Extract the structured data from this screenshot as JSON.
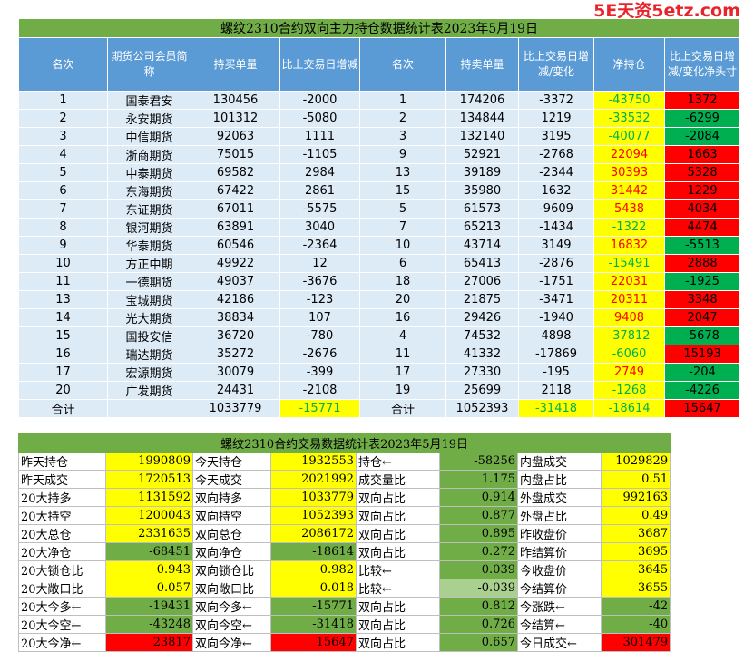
{
  "watermark": "5E天资5etz.com",
  "top": {
    "title": "螺纹2310合约双向主力持仓数据统计表2023年5月19日",
    "headers": [
      "名次",
      "期货公司会员简称",
      "持买单量",
      "比上交易日增减",
      "名次",
      "持卖单量",
      "比上交易日增减/变化",
      "净持仓",
      "比上交易日增减/变化净头寸"
    ],
    "rows": [
      [
        "1",
        "国泰君安",
        "130456",
        "-2000",
        "1",
        "174206",
        "-3372",
        "-43750",
        "1372"
      ],
      [
        "2",
        "永安期货",
        "101312",
        "-5080",
        "2",
        "134844",
        "1219",
        "-33532",
        "-6299"
      ],
      [
        "3",
        "中信期货",
        "92063",
        "1111",
        "3",
        "132140",
        "3195",
        "-40077",
        "-2084"
      ],
      [
        "4",
        "浙商期货",
        "75015",
        "-1105",
        "9",
        "52921",
        "-2768",
        "22094",
        "1663"
      ],
      [
        "5",
        "中泰期货",
        "69582",
        "2984",
        "13",
        "39189",
        "-2344",
        "30393",
        "5328"
      ],
      [
        "6",
        "东海期货",
        "67422",
        "2861",
        "15",
        "35980",
        "1632",
        "31442",
        "1229"
      ],
      [
        "7",
        "东证期货",
        "67011",
        "-5575",
        "5",
        "61573",
        "-9609",
        "5438",
        "4034"
      ],
      [
        "8",
        "银河期货",
        "63891",
        "3040",
        "7",
        "65213",
        "-1434",
        "-1322",
        "4474"
      ],
      [
        "9",
        "华泰期货",
        "60546",
        "-2364",
        "10",
        "43714",
        "3149",
        "16832",
        "-5513"
      ],
      [
        "10",
        "方正中期",
        "49922",
        "12",
        "6",
        "65413",
        "-2876",
        "-15491",
        "2888"
      ],
      [
        "11",
        "一德期货",
        "49037",
        "-3676",
        "18",
        "27006",
        "-1751",
        "22031",
        "-1925"
      ],
      [
        "13",
        "宝城期货",
        "42186",
        "-123",
        "20",
        "21875",
        "-3471",
        "20311",
        "3348"
      ],
      [
        "14",
        "光大期货",
        "38834",
        "107",
        "16",
        "29426",
        "-1940",
        "9408",
        "2047"
      ],
      [
        "15",
        "国投安信",
        "36720",
        "-780",
        "4",
        "74532",
        "4898",
        "-37812",
        "-5678"
      ],
      [
        "16",
        "瑞达期货",
        "35272",
        "-2676",
        "11",
        "41332",
        "-17869",
        "-6060",
        "15193"
      ],
      [
        "17",
        "宏源期货",
        "30079",
        "-399",
        "17",
        "27330",
        "-195",
        "2749",
        "-204"
      ],
      [
        "20",
        "广发期货",
        "24431",
        "-2108",
        "19",
        "25699",
        "2118",
        "-1268",
        "-4226"
      ]
    ],
    "sum": [
      "合计",
      "",
      "1033779",
      "-15771",
      "合计",
      "1052393",
      "-31418",
      "-18614",
      "15647"
    ]
  },
  "bottom": {
    "title": "螺纹2310合约交易数据统计表2023年5月19日",
    "rows": [
      [
        "昨天持仓",
        "1990809",
        "今天持仓",
        "1932553",
        "持仓←",
        "-58256",
        "内盘成交",
        "1029829"
      ],
      [
        "昨天成交",
        "1720513",
        "今天成交",
        "2021992",
        "成交量比",
        "1.175",
        "内盘占比",
        "0.51"
      ],
      [
        "20大持多",
        "1131592",
        "双向持多",
        "1033779",
        "双向占比",
        "0.914",
        "外盘成交",
        "992163"
      ],
      [
        "20大持空",
        "1200043",
        "双向持空",
        "1052393",
        "双向占比",
        "0.877",
        "外盘占比",
        "0.49"
      ],
      [
        "20大总仓",
        "2331635",
        "双向总仓",
        "2086172",
        "双向占比",
        "0.895",
        "昨收盘价",
        "3687"
      ],
      [
        "20大净仓",
        "-68451",
        "双向净仓",
        "-18614",
        "双向占比",
        "0.272",
        "昨结算价",
        "3695"
      ],
      [
        "20大锁仓比",
        "0.943",
        "双向锁仓比",
        "0.982",
        "比较←",
        "0.039",
        "今收盘价",
        "3645"
      ],
      [
        "20大敞口比",
        "0.057",
        "双向敞口比",
        "0.018",
        "比较←",
        "-0.039",
        "今结算价",
        "3655"
      ],
      [
        "20大今多←",
        "-19431",
        "双向今多←",
        "-15771",
        "双向占比",
        "0.812",
        "今涨跌←",
        "-42"
      ],
      [
        "20大今空←",
        "-43248",
        "双向今空←",
        "-31418",
        "双向占比",
        "0.726",
        "今结算←",
        "-40"
      ],
      [
        "20大今净←",
        "23817",
        "双向今净←",
        "15647",
        "双向占比",
        "0.657",
        "今日成交←",
        "301479"
      ]
    ]
  }
}
